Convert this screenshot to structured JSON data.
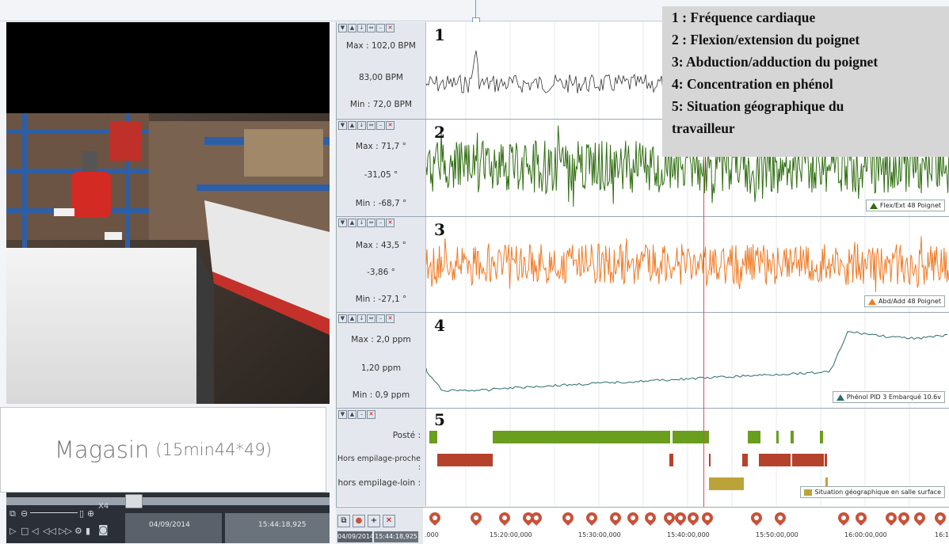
{
  "place": {
    "name": "Magasin",
    "duration": "(15min44*49)"
  },
  "player": {
    "zoom": "X4",
    "date": "04/09/2014",
    "time": "15:44:18,925"
  },
  "legend_overlay": [
    "1 : Fréquence cardiaque",
    "2 : Flexion/extension du poignet",
    "3: Abduction/adduction du poignet",
    "4: Concentration en phénol",
    "5: Situation géographique du",
    "travailleur"
  ],
  "lanes": [
    {
      "num": "1",
      "max": "Max : 102,0 BPM",
      "current": "83,00 BPM",
      "min": "Min : 72,0 BPM",
      "color": "#333333"
    },
    {
      "num": "2",
      "max": "Max : 71,7 °",
      "current": "-31,05 °",
      "min": "Min : -68,7 °",
      "color": "#2f6e10",
      "legend": "Flex/Ext 48 Poignet"
    },
    {
      "num": "3",
      "max": "Max : 43,5 °",
      "current": "-3,86 °",
      "min": "Min : -27,1 °",
      "color": "#f07a25",
      "legend": "Abd/Add 48 Poignet"
    },
    {
      "num": "4",
      "max": "Max : 2,0 ppm",
      "current": "1,20 ppm",
      "min": "Min : 0,9 ppm",
      "color": "#2d6b6b",
      "legend": "Phénol PID 3 Embarqué 10.6v"
    },
    {
      "num": "5",
      "categories": [
        "Posté :",
        "Hors empilage-proche :",
        "hors empilage-loin :"
      ],
      "legend": "Situation géographique en salle surface"
    }
  ],
  "timeline": {
    "date": "04/09/2014",
    "time": "15:44:18,925",
    "ticks": [
      ".000",
      "15:20:00,000",
      "15:30:00,000",
      "15:40:00,000",
      "15:50:00,000",
      "16:00:00,000",
      "16:1"
    ]
  },
  "colors": {
    "green_bar": "#6a9e1f",
    "red_bar": "#b5422a",
    "olive_bar": "#bba33a",
    "cursor": "#e05050"
  }
}
